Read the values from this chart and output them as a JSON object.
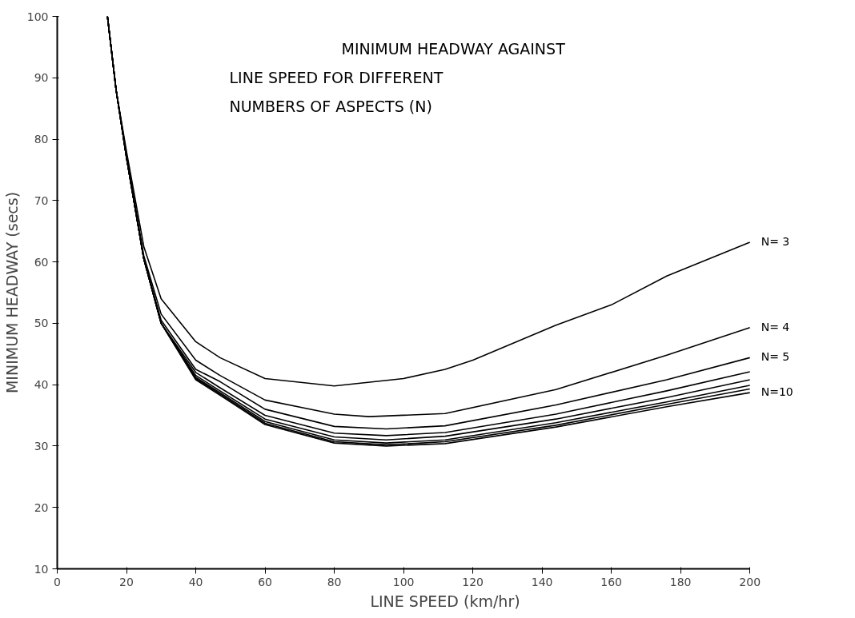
{
  "chart_data": {
    "type": "line",
    "title": "MINIMUM HEADWAY AGAINST\nLINE SPEED FOR DIFFERENT\nNUMBERS OF ASPECTS (N)",
    "xlabel": "LINE SPEED (km/hr)",
    "ylabel": "MINIMUM HEADWAY (secs)",
    "xlim": [
      0,
      200
    ],
    "ylim": [
      10,
      100
    ],
    "xticks": [
      0,
      20,
      40,
      60,
      80,
      100,
      120,
      140,
      160,
      180,
      200
    ],
    "yticks": [
      10,
      20,
      30,
      40,
      50,
      60,
      70,
      80,
      90,
      100
    ],
    "grid": false,
    "marker": "none",
    "line_style": "solid",
    "series": [
      {
        "name": "N= 3",
        "color": "#000000",
        "x": [
          14.5,
          17,
          20,
          25,
          30,
          40,
          47,
          60,
          80,
          100,
          112,
          120,
          144,
          160,
          176,
          200
        ],
        "values": [
          100,
          88,
          78,
          62.5,
          54,
          47,
          44.4,
          41,
          39.8,
          41,
          42.5,
          44,
          49.7,
          53,
          57.7,
          63.2
        ]
      },
      {
        "name": "N= 4",
        "color": "#000000",
        "x": [
          14.5,
          17,
          20,
          25,
          30,
          40,
          47,
          60,
          80,
          90,
          112,
          144,
          176,
          200
        ],
        "values": [
          100,
          88,
          77.5,
          61,
          51.5,
          44,
          41.5,
          37.5,
          35.2,
          34.8,
          35.3,
          39.2,
          44.8,
          49.3
        ]
      },
      {
        "name": "N= 5",
        "color": "#000000",
        "x": [
          14.5,
          17,
          20,
          25,
          30,
          40,
          47,
          60,
          80,
          95,
          112,
          144,
          176,
          200
        ],
        "values": [
          100,
          88,
          77,
          60.5,
          50.5,
          42.5,
          40.5,
          36,
          33.2,
          32.8,
          33.3,
          36.7,
          40.8,
          44.4
        ]
      },
      {
        "color": "#000000",
        "x": [
          14.5,
          17,
          20,
          25,
          30,
          40,
          47,
          60,
          80,
          95,
          112,
          144,
          176,
          200
        ],
        "values": [
          100,
          88,
          77,
          60.5,
          50,
          42,
          39.5,
          35,
          32.1,
          31.7,
          32.2,
          35.2,
          39,
          42.1
        ]
      },
      {
        "color": "#000000",
        "x": [
          14.5,
          17,
          20,
          25,
          30,
          40,
          47,
          60,
          80,
          95,
          112,
          144,
          176,
          200
        ],
        "values": [
          100,
          88,
          77,
          60.5,
          50,
          41.5,
          39,
          34.4,
          31.5,
          31,
          31.6,
          34.4,
          37.9,
          40.8
        ]
      },
      {
        "color": "#000000",
        "x": [
          14.5,
          17,
          20,
          25,
          30,
          40,
          47,
          60,
          80,
          95,
          112,
          144,
          176,
          200
        ],
        "values": [
          100,
          88,
          77,
          60.5,
          50,
          41.2,
          38.7,
          34,
          31,
          30.5,
          31,
          33.8,
          37.2,
          39.9
        ]
      },
      {
        "color": "#000000",
        "x": [
          14.5,
          17,
          20,
          25,
          30,
          40,
          47,
          60,
          80,
          95,
          112,
          144,
          176,
          200
        ],
        "values": [
          100,
          88,
          77,
          60.5,
          50,
          41,
          38.5,
          33.7,
          30.7,
          30.2,
          30.7,
          33.4,
          36.8,
          39.3
        ]
      },
      {
        "name": "N=10",
        "color": "#000000",
        "x": [
          14.5,
          17,
          20,
          25,
          30,
          40,
          47,
          60,
          80,
          95,
          112,
          144,
          176,
          200
        ],
        "values": [
          100,
          88,
          77,
          60.5,
          50,
          40.8,
          38.3,
          33.5,
          30.5,
          30,
          30.4,
          33.1,
          36.4,
          38.7
        ]
      }
    ]
  }
}
